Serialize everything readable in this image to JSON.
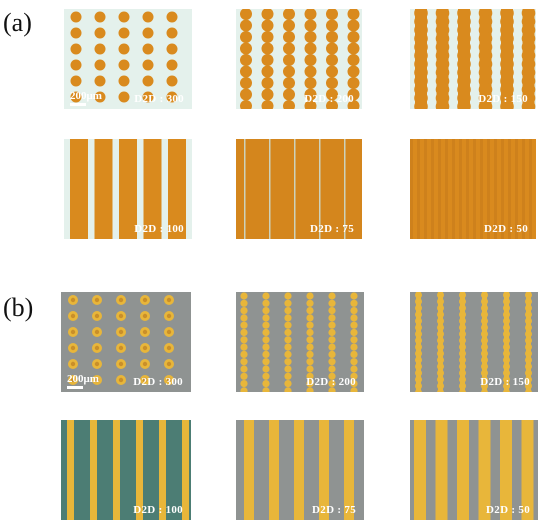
{
  "label_a": "(a)",
  "label_b": "(b)",
  "scale_bar_text": "200μm",
  "colors": {
    "ink_orange": "#d98a1e",
    "ink_dark_orange": "#b9701a",
    "substrate_a": "#e4f1ec",
    "substrate_b_grey": "#8f9392",
    "substrate_b_teal": "#4c7d74",
    "line_b_gold": "#e8b63a"
  },
  "panels_a": [
    {
      "label": "D2D : 300",
      "pattern": "dots"
    },
    {
      "label": "D2D : 200",
      "pattern": "dot-chains"
    },
    {
      "label": "D2D : 150",
      "pattern": "wavy-lines"
    },
    {
      "label": "D2D : 100",
      "pattern": "lines"
    },
    {
      "label": "D2D : 75",
      "pattern": "merged-lines"
    },
    {
      "label": "D2D : 50",
      "pattern": "continuous-film"
    }
  ],
  "panels_b": [
    {
      "label": "D2D : 300",
      "pattern": "dots"
    },
    {
      "label": "D2D : 200",
      "pattern": "dot-chains"
    },
    {
      "label": "D2D : 150",
      "pattern": "wavy-lines"
    },
    {
      "label": "D2D : 100",
      "pattern": "lines"
    },
    {
      "label": "D2D : 75",
      "pattern": "lines"
    },
    {
      "label": "D2D : 50",
      "pattern": "lines"
    }
  ]
}
